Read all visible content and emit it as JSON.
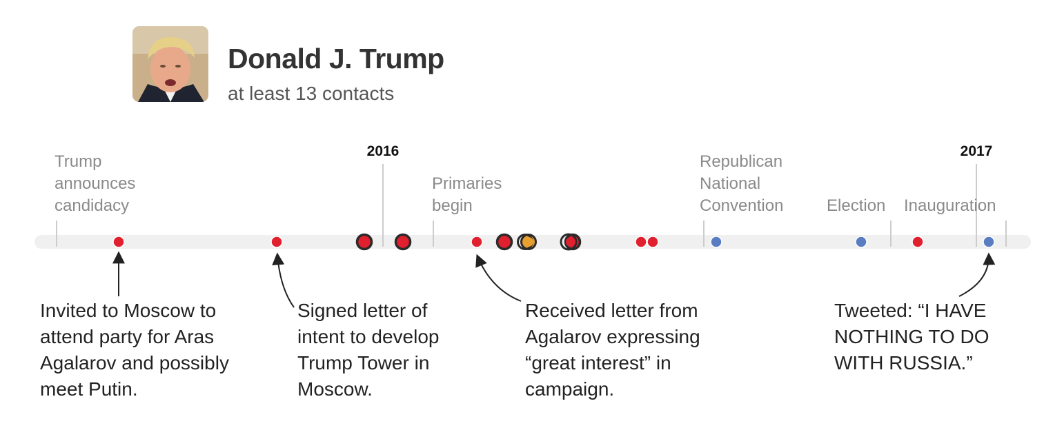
{
  "header": {
    "name": "Donald J. Trump",
    "subtitle": "at least 13 contacts"
  },
  "colors": {
    "track": "#f0f0f0",
    "tick": "#cccccc",
    "event_label": "#8a8a8a",
    "year_label": "#111111",
    "red": "#e0202e",
    "blue": "#5a7dc2",
    "orange": "#e8a030",
    "dark_ring": "#2a2a2a",
    "arrow": "#222222"
  },
  "years": [
    "2016",
    "2017"
  ],
  "events": [
    [
      "Trump",
      "announces",
      "candidacy"
    ],
    [
      "Primaries",
      "begin"
    ],
    [
      "Republican",
      "National",
      "Convention"
    ],
    [
      "Election"
    ],
    [
      "Inauguration"
    ]
  ],
  "dots": [
    {
      "color": "red",
      "ring": false
    },
    {
      "color": "red",
      "ring": false
    },
    {
      "color": "red",
      "ring": true
    },
    {
      "color": "red",
      "ring": true
    },
    {
      "color": "red",
      "ring": false
    },
    {
      "color": "red",
      "ring": true
    },
    {
      "color": "orange",
      "ring": true
    },
    {
      "color": "red",
      "ring": true
    },
    {
      "color": "red",
      "ring": false
    },
    {
      "color": "red",
      "ring": false
    },
    {
      "color": "blue",
      "ring": false
    },
    {
      "color": "blue",
      "ring": false
    },
    {
      "color": "red",
      "ring": false
    },
    {
      "color": "blue",
      "ring": false
    }
  ],
  "annotations": [
    "Invited to Moscow to attend party for Aras Agalarov and possibly meet Putin.",
    "Signed letter of intent to develop Trump Tower in Moscow.",
    "Received letter from Agalarov expressing “great interest” in campaign.",
    "Tweeted: “I HAVE NOTHING TO DO WITH RUSSIA.”"
  ]
}
